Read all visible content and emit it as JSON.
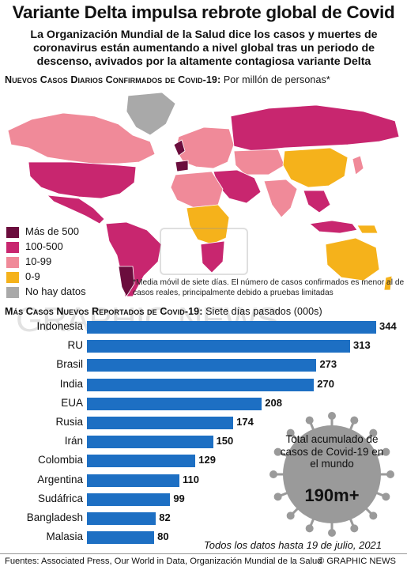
{
  "header": {
    "title": "Variante Delta impulsa rebrote global de Covid",
    "subtitle": "La Organización Mundial de la Salud dice los casos y muertes de coronavirus están aumentando a nivel global tras un periodo de descenso, avivados por la altamente contagiosa variante Delta"
  },
  "map": {
    "heading_bold": "Nuevos Casos Diarios Confirmados de Covid-19:",
    "heading_light": "Por millón de personas*",
    "legend": [
      {
        "label": "Más de 500",
        "color": "#6b0d3d"
      },
      {
        "label": "100-500",
        "color": "#c8266f"
      },
      {
        "label": "10-99",
        "color": "#f08a99"
      },
      {
        "label": "0-9",
        "color": "#f5b21b"
      },
      {
        "label": "No hay datos",
        "color": "#a9a9a9"
      }
    ],
    "note": "*Media móvil de siete días. El número de casos confirmados es menor al de casos reales, principalmente debido a pruebas limitadas"
  },
  "chart_data": {
    "type": "bar",
    "title": "Más Casos Nuevos Reportados de Covid-19:",
    "subtitle": "Siete días pasados (000s)",
    "categories": [
      "Indonesia",
      "RU",
      "Brasil",
      "India",
      "EUA",
      "Rusia",
      "Irán",
      "Colombia",
      "Argentina",
      "Sudáfrica",
      "Bangladesh",
      "Malasia"
    ],
    "values": [
      344,
      313,
      273,
      270,
      208,
      174,
      150,
      129,
      110,
      99,
      82,
      80
    ],
    "bar_color": "#1d6fc3",
    "xlim": [
      0,
      344
    ]
  },
  "callout": {
    "text": "Total acumulado de casos de Covid-19 en el mundo",
    "total": "190m+"
  },
  "footnote": "Todos los datos hasta 19 de julio, 2021",
  "footer": {
    "sources": "Fuentes: Associated Press, Our World in Data, Organización Mundial de la Salud",
    "credit": "© GRAPHIC NEWS"
  },
  "watermark": "GRAPHIC NEWS"
}
